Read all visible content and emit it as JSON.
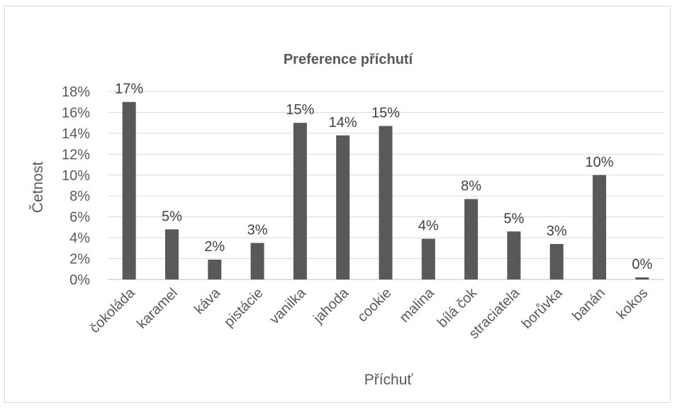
{
  "chart_data": {
    "type": "bar",
    "title": "Preference příchutí",
    "xlabel": "Příchuť",
    "ylabel": "Četnost",
    "categories": [
      "čokoláda",
      "karamel",
      "káva",
      "pistácie",
      "vanilka",
      "jahoda",
      "cookie",
      "malina",
      "bílá čok",
      "straciatela",
      "borůvka",
      "banán",
      "kokos"
    ],
    "values": [
      17,
      4.8,
      1.9,
      3.5,
      15,
      13.8,
      14.7,
      3.9,
      7.7,
      4.6,
      3.4,
      10,
      0.2
    ],
    "data_labels": [
      "17%",
      "5%",
      "2%",
      "3%",
      "15%",
      "14%",
      "15%",
      "4%",
      "8%",
      "5%",
      "3%",
      "10%",
      "0%"
    ],
    "y_ticks": [
      "0%",
      "2%",
      "4%",
      "6%",
      "8%",
      "10%",
      "12%",
      "14%",
      "16%",
      "18%"
    ],
    "ylim": [
      0,
      18
    ],
    "grid": true,
    "legend": "none",
    "bar_color": "#595959",
    "grid_color": "#d9d9d9"
  }
}
